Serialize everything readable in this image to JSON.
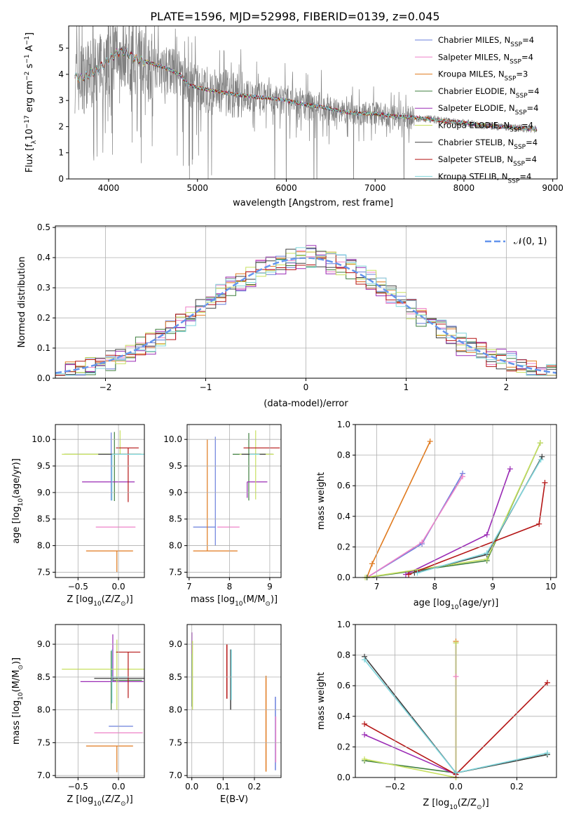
{
  "title": "PLATE=1596, MJD=52998, FIBERID=0139, z=0.045",
  "colors": {
    "data": "#808080",
    "model": [
      "#6a7fdc",
      "#ee82c8",
      "#e07a1e",
      "#3f7f3f",
      "#9a2bb5",
      "#c8e060",
      "#404040",
      "#b41414",
      "#7fd6dc"
    ]
  },
  "legend": [
    {
      "label": "Chabrier MILES, N",
      "sub": "SSP",
      "suffix": "=4"
    },
    {
      "label": "Salpeter MILES, N",
      "sub": "SSP",
      "suffix": "=4"
    },
    {
      "label": "Kroupa MILES, N",
      "sub": "SSP",
      "suffix": "=3"
    },
    {
      "label": "Chabrier ELODIE, N",
      "sub": "SSP",
      "suffix": "=4"
    },
    {
      "label": "Salpeter ELODIE, N",
      "sub": "SSP",
      "suffix": "=4"
    },
    {
      "label": "Kroupa ELODIE, N",
      "sub": "SSP",
      "suffix": "=4"
    },
    {
      "label": "Chabrier STELIB, N",
      "sub": "SSP",
      "suffix": "=4"
    },
    {
      "label": "Salpeter STELIB, N",
      "sub": "SSP",
      "suffix": "=4"
    },
    {
      "label": "Kroupa STELIB, N",
      "sub": "SSP",
      "suffix": "=4"
    }
  ],
  "chart_data": [
    {
      "type": "line",
      "id": "spectrum",
      "xlabel": "wavelength [Angstrom, rest frame]",
      "ylabel": "Flux [f",
      "xlim": [
        3550,
        9050
      ],
      "ylim": [
        0,
        5.85
      ],
      "xticks": [
        4000,
        5000,
        6000,
        7000,
        8000,
        9000
      ],
      "yticks": [
        0,
        1,
        2,
        3,
        4,
        5
      ],
      "grid": false,
      "model_continuum": {
        "x": [
          3620,
          3700,
          3800,
          3900,
          4000,
          4100,
          4200,
          4300,
          4400,
          4500,
          4600,
          4700,
          4800,
          4900,
          5000,
          5200,
          5400,
          5600,
          5800,
          6000,
          6200,
          6400,
          6600,
          6800,
          7000,
          7200,
          7400,
          7600,
          7800,
          8000,
          8200,
          8400,
          8600,
          8800,
          8820
        ],
        "y": [
          3.9,
          3.85,
          4.05,
          4.25,
          4.55,
          4.85,
          4.85,
          4.6,
          4.5,
          4.4,
          4.3,
          4.15,
          4.0,
          3.6,
          3.5,
          3.35,
          3.25,
          3.15,
          3.1,
          3.0,
          2.85,
          2.75,
          2.6,
          2.5,
          2.5,
          2.4,
          2.35,
          2.3,
          2.2,
          2.15,
          2.05,
          2.0,
          1.95,
          1.9,
          1.9
        ]
      }
    },
    {
      "type": "line",
      "id": "residuals",
      "xlabel": "(data-model)/error",
      "ylabel": "Normed distribution",
      "xlim": [
        -2.5,
        2.5
      ],
      "ylim": [
        0,
        0.505
      ],
      "xticks": [
        -2,
        -1,
        0,
        1,
        2
      ],
      "yticks": [
        0,
        0.1,
        0.2,
        0.3,
        0.4,
        0.5
      ],
      "grid": true,
      "legend_label": "𝒩(0, 1)",
      "legend_placement": "upper-right",
      "series": [
        {
          "name": "𝒩(0, 1)",
          "function": "standard-normal-pdf"
        }
      ]
    },
    {
      "type": "scatter",
      "id": "age-vs-Z",
      "xlabel": "Z [log",
      "ylabel": "age  [log",
      "xlim": [
        -0.78,
        0.32
      ],
      "ylim": [
        7.4,
        10.28
      ],
      "xticks": [
        -0.5,
        0.0
      ],
      "yticks": [
        7.5,
        8.0,
        8.5,
        9.0,
        9.5,
        10.0
      ],
      "grid": true,
      "points": [
        {
          "x": -0.09,
          "y": 9.48,
          "xerr": [
            0.0,
            0.0
          ],
          "yerr": [
            0.63,
            0.65
          ]
        },
        {
          "x": 0.0,
          "y": 8.35,
          "xerr": [
            0.28,
            0.21
          ],
          "yerr": [
            0.0,
            0.0
          ]
        },
        {
          "x": -0.02,
          "y": 7.9,
          "xerr": [
            0.38,
            0.2
          ],
          "yerr": [
            0.4,
            0.0
          ]
        },
        {
          "x": -0.05,
          "y": 9.72,
          "xerr": [
            0.62,
            0.32
          ],
          "yerr": [
            0.88,
            0.42
          ]
        },
        {
          "x": -0.07,
          "y": 9.2,
          "xerr": [
            0.38,
            0.27
          ],
          "yerr": [
            0.0,
            0.0
          ]
        },
        {
          "x": 0.02,
          "y": 9.72,
          "xerr": [
            0.72,
            0.3
          ],
          "yerr": [
            0.0,
            0.45
          ]
        },
        {
          "x": 0.0,
          "y": 9.72,
          "xerr": [
            0.25,
            0.28
          ],
          "yerr": [
            0.0,
            0.0
          ]
        },
        {
          "x": 0.12,
          "y": 9.84,
          "xerr": [
            0.15,
            0.13
          ],
          "yerr": [
            1.02,
            0.0
          ]
        },
        {
          "x": -0.08,
          "y": 9.72,
          "xerr": [
            0.0,
            0.4
          ],
          "yerr": [
            0.87,
            0.0
          ]
        }
      ]
    },
    {
      "type": "scatter",
      "id": "age-vs-mass",
      "xlabel": "mass [log",
      "ylabel": "",
      "xlim": [
        6.95,
        9.28
      ],
      "ylim": [
        7.4,
        10.28
      ],
      "xticks": [
        7,
        8,
        9
      ],
      "yticks": [
        7.5,
        8.0,
        8.5,
        9.0,
        9.5,
        10.0
      ],
      "grid": true,
      "points": [
        {
          "x": 7.65,
          "y": 8.35,
          "xerr": [
            0.55,
            0.0
          ],
          "yerr": [
            0.35,
            1.7
          ]
        },
        {
          "x": 7.7,
          "y": 8.35,
          "xerr": [
            0.0,
            0.55
          ],
          "yerr": [
            0.0,
            0.0
          ]
        },
        {
          "x": 7.45,
          "y": 7.9,
          "xerr": [
            0.35,
            0.75
          ],
          "yerr": [
            0.0,
            2.1
          ]
        },
        {
          "x": 8.48,
          "y": 9.72,
          "xerr": [
            0.4,
            0.6
          ],
          "yerr": [
            0.87,
            0.4
          ]
        },
        {
          "x": 8.44,
          "y": 9.2,
          "xerr": [
            0.0,
            0.5
          ],
          "yerr": [
            0.3,
            0.0
          ]
        },
        {
          "x": 8.65,
          "y": 9.72,
          "xerr": [
            0.4,
            0.45
          ],
          "yerr": [
            0.85,
            0.45
          ]
        },
        {
          "x": 8.5,
          "y": 9.72,
          "xerr": [
            0.2,
            0.4
          ],
          "yerr": [
            0.0,
            0.0
          ]
        },
        {
          "x": 8.8,
          "y": 9.84,
          "xerr": [
            0.45,
            0.45
          ],
          "yerr": [
            0.0,
            0.0
          ]
        },
        {
          "x": 8.5,
          "y": 9.72,
          "xerr": [
            0.0,
            0.25
          ],
          "yerr": [
            0.0,
            0.0
          ]
        }
      ]
    },
    {
      "type": "line",
      "id": "massweight-vs-age",
      "xlabel": "age  [log",
      "ylabel": "mass weight",
      "xlim": [
        6.63,
        10.1
      ],
      "ylim": [
        0,
        1.0
      ],
      "xticks": [
        7,
        8,
        9,
        10
      ],
      "yticks": [
        0.0,
        0.2,
        0.4,
        0.6,
        0.8,
        1.0
      ],
      "grid": true,
      "series": [
        {
          "x": [
            6.83,
            7.78,
            8.48
          ],
          "y": [
            0.0,
            0.22,
            0.68
          ]
        },
        {
          "x": [
            6.83,
            7.78,
            8.48
          ],
          "y": [
            0.0,
            0.23,
            0.66
          ]
        },
        {
          "x": [
            6.83,
            6.92,
            7.92
          ],
          "y": [
            0.0,
            0.09,
            0.89
          ]
        },
        {
          "x": [
            6.83,
            8.9,
            9.82
          ],
          "y": [
            0.0,
            0.11,
            0.88
          ]
        },
        {
          "x": [
            7.5,
            8.9,
            9.3
          ],
          "y": [
            0.02,
            0.28,
            0.71
          ]
        },
        {
          "x": [
            6.8,
            8.9,
            9.82
          ],
          "y": [
            0.0,
            0.12,
            0.88
          ]
        },
        {
          "x": [
            7.65,
            8.9,
            9.85
          ],
          "y": [
            0.03,
            0.15,
            0.79
          ]
        },
        {
          "x": [
            7.55,
            9.8,
            9.9
          ],
          "y": [
            0.02,
            0.35,
            0.62
          ]
        },
        {
          "x": [
            7.7,
            8.9,
            9.83
          ],
          "y": [
            0.03,
            0.16,
            0.77
          ]
        }
      ]
    },
    {
      "type": "scatter",
      "id": "mass-vs-Z",
      "xlabel": "Z [log",
      "ylabel": "mass [log",
      "xlim": [
        -0.78,
        0.32
      ],
      "ylim": [
        6.97,
        9.3
      ],
      "xticks": [
        -0.5,
        0.0
      ],
      "yticks": [
        7.0,
        7.5,
        8.0,
        8.5,
        9.0
      ],
      "grid": true,
      "points": [
        {
          "x": -0.02,
          "y": 7.75,
          "xerr": [
            0.1,
            0.2
          ],
          "yerr": [
            0.0,
            0.0
          ]
        },
        {
          "x": 0.0,
          "y": 7.65,
          "xerr": [
            0.3,
            0.3
          ],
          "yerr": [
            0.0,
            0.0
          ]
        },
        {
          "x": -0.02,
          "y": 7.45,
          "xerr": [
            0.38,
            0.2
          ],
          "yerr": [
            0.4,
            0.0
          ]
        },
        {
          "x": -0.09,
          "y": 8.45,
          "xerr": [
            0.0,
            0.38
          ],
          "yerr": [
            0.45,
            0.45
          ]
        },
        {
          "x": -0.07,
          "y": 8.43,
          "xerr": [
            0.4,
            0.38
          ],
          "yerr": [
            0.0,
            0.72
          ]
        },
        {
          "x": -0.02,
          "y": 8.62,
          "xerr": [
            0.68,
            0.38
          ],
          "yerr": [
            0.62,
            0.45
          ]
        },
        {
          "x": 0.0,
          "y": 8.48,
          "xerr": [
            0.3,
            0.35
          ],
          "yerr": [
            0.0,
            0.0
          ]
        },
        {
          "x": 0.12,
          "y": 8.88,
          "xerr": [
            0.15,
            0.15
          ],
          "yerr": [
            0.7,
            0.0
          ]
        },
        {
          "x": -0.08,
          "y": 8.5,
          "xerr": [
            0.0,
            0.2
          ],
          "yerr": [
            0.4,
            0.42
          ]
        }
      ]
    },
    {
      "type": "scatter",
      "id": "mass-vs-EBV",
      "xlabel": "E(B-V)",
      "ylabel": "",
      "xlim": [
        -0.015,
        0.285
      ],
      "ylim": [
        6.97,
        9.3
      ],
      "xticks": [
        0.0,
        0.1,
        0.2
      ],
      "yticks": [
        7.0,
        7.5,
        8.0,
        8.5,
        9.0
      ],
      "grid": true,
      "vsegs": [
        {
          "x": 0.267,
          "y0": 7.08,
          "y1": 8.2,
          "series": 0
        },
        {
          "x": 0.268,
          "y0": 7.2,
          "y1": 7.9,
          "series": 1
        },
        {
          "x": 0.237,
          "y0": 7.06,
          "y1": 8.52,
          "series": 2
        },
        {
          "x": 0.0,
          "y0": 8.05,
          "y1": 9.05,
          "series": 3
        },
        {
          "x": 0.0,
          "y0": 8.85,
          "y1": 9.18,
          "series": 4
        },
        {
          "x": 0.002,
          "y0": 8.0,
          "y1": 9.05,
          "series": 5
        },
        {
          "x": 0.124,
          "y0": 8.0,
          "y1": 8.92,
          "series": 6
        },
        {
          "x": 0.112,
          "y0": 8.17,
          "y1": 9.0,
          "series": 7
        },
        {
          "x": 0.126,
          "y0": 8.15,
          "y1": 8.92,
          "series": 8
        }
      ]
    },
    {
      "type": "line",
      "id": "massweight-vs-Z",
      "xlabel": "Z [log",
      "ylabel": "mass weight",
      "xlim": [
        -0.33,
        0.33
      ],
      "ylim": [
        0,
        1.0
      ],
      "xticks": [
        -0.2,
        0.0,
        0.2
      ],
      "yticks": [
        0.0,
        0.2,
        0.4,
        0.6,
        0.8,
        1.0
      ],
      "grid": true,
      "series": [
        {
          "x": [
            0.0,
            0.0
          ],
          "y": [
            0.0,
            0.88
          ]
        },
        {
          "x": [
            0.0,
            0.0
          ],
          "y": [
            0.0,
            0.66
          ]
        },
        {
          "x": [
            0.0,
            0.0
          ],
          "y": [
            0.0,
            0.89
          ]
        },
        {
          "x": [
            -0.3,
            0.0,
            0.3
          ],
          "y": [
            0.11,
            0.03,
            0.15
          ]
        },
        {
          "x": [
            -0.3,
            0.0
          ],
          "y": [
            0.28,
            0.02
          ]
        },
        {
          "x": [
            -0.3,
            0.0,
            0.0
          ],
          "y": [
            0.12,
            0.0,
            0.88
          ]
        },
        {
          "x": [
            -0.3,
            0.0,
            0.3
          ],
          "y": [
            0.79,
            0.03,
            0.15
          ]
        },
        {
          "x": [
            -0.3,
            0.0,
            0.3
          ],
          "y": [
            0.35,
            0.02,
            0.62
          ]
        },
        {
          "x": [
            -0.3,
            0.0,
            0.3
          ],
          "y": [
            0.77,
            0.03,
            0.16
          ]
        }
      ]
    }
  ]
}
